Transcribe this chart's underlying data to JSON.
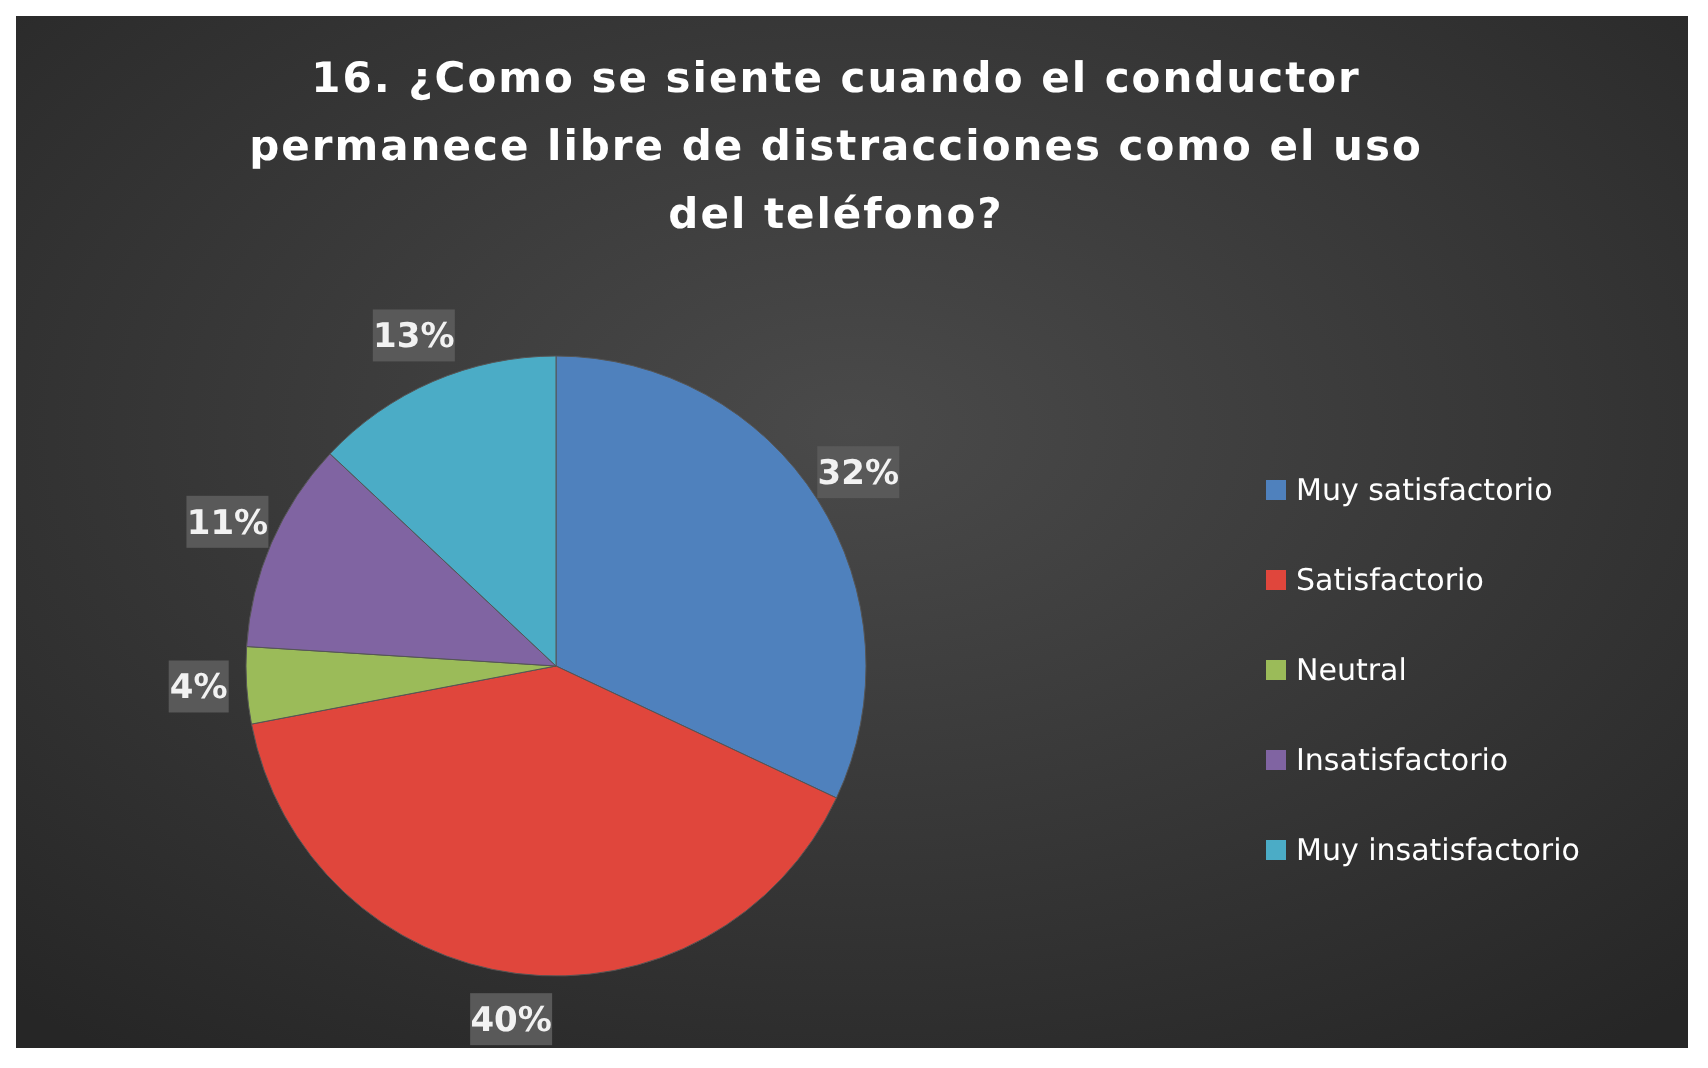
{
  "chart_data": {
    "type": "pie",
    "title": "16. ¿Como se siente cuando el conductor permanece libre de distracciones como el uso del teléfono?",
    "categories": [
      "Muy satisfactorio",
      "Satisfactorio",
      "Neutral",
      "Insatisfactorio",
      "Muy insatisfactorio"
    ],
    "values": [
      32,
      40,
      4,
      11,
      13
    ],
    "value_labels": [
      "32%",
      "40%",
      "4%",
      "11%",
      "13%"
    ],
    "colors": [
      "#4f81bd",
      "#e0463c",
      "#9bbb59",
      "#8064a2",
      "#4bacc6"
    ],
    "legend": "right"
  }
}
